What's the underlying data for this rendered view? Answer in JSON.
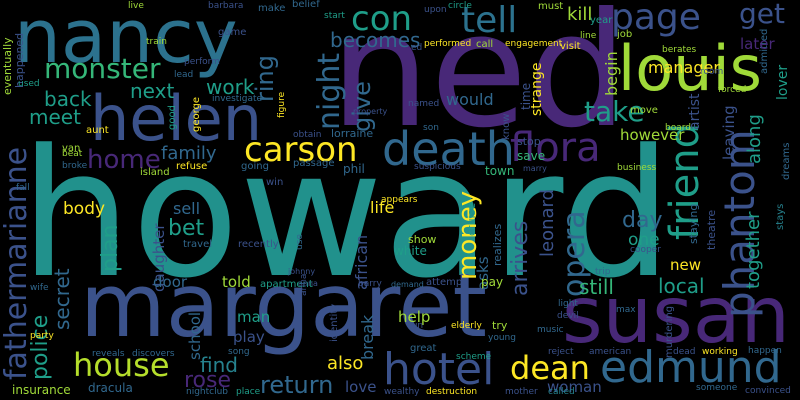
{
  "colors": {
    "background": "#000000",
    "palette": [
      "#440154",
      "#46327e",
      "#365c8d",
      "#277f8e",
      "#1fa187",
      "#4ac16d",
      "#a0da39",
      "#fde725"
    ]
  },
  "words": {
    "howard": "howard",
    "ned": "ned",
    "margaret": "margaret",
    "susan": "susan",
    "nancy": "nancy",
    "louis": "louis",
    "helen": "helen",
    "death": "death",
    "phantom": "phantom",
    "hotel": "hotel",
    "edmund": "edmund",
    "house": "house",
    "fathermarianne": "fathermarianne",
    "friend": "friend",
    "carson": "carson",
    "flora": "flora",
    "tell": "tell",
    "con": "con",
    "page": "page",
    "get": "get",
    "monster": "monster",
    "night": "night",
    "dean": "dean",
    "opera": "opera",
    "money": "money",
    "home": "home",
    "take": "take",
    "return": "return",
    "rose": "rose",
    "find": "find",
    "back": "back",
    "meet": "meet",
    "next": "next",
    "work": "work",
    "ring": "ring",
    "becomes": "becomes",
    "give": "give",
    "family": "family",
    "police": "police",
    "secret": "secret",
    "plan": "plan",
    "bet": "bet",
    "body": "body",
    "arrives": "arrives",
    "leonard": "leonard",
    "day": "day",
    "one": "one",
    "still": "still",
    "local": "local",
    "together": "together",
    "along": "along",
    "begin": "begin",
    "manager": "manager",
    "later": "later",
    "kill": "kill",
    "also": "also",
    "told": "told",
    "man": "man",
    "play": "play",
    "door": "door",
    "school": "school",
    "help": "help",
    "break": "break",
    "life": "life",
    "sell": "sell",
    "daughter": "daughter",
    "would": "would",
    "however": "however",
    "leaving": "leaving",
    "artist": "artist",
    "new": "new",
    "woman": "woman",
    "love": "love",
    "african": "african",
    "white": "white",
    "asks": "asks",
    "town": "town",
    "save": "save",
    "stop": "stop",
    "strange": "strange",
    "time": "time",
    "lorraine": "lorraine",
    "phil": "phil",
    "dracula": "dracula",
    "insurance": "insurance",
    "lover": "lover",
    "circle": "circle",
    "must": "must",
    "job": "job",
    "year": "year",
    "visit": "visit",
    "call": "call",
    "performed": "performed",
    "engagement": "engagement",
    "upon": "upon",
    "start": "start",
    "belief": "belief",
    "make": "make",
    "barbara": "barbara",
    "live": "live",
    "train": "train",
    "eventually": "eventually",
    "happened": "happened",
    "used": "used",
    "aunt": "aunt",
    "van": "van",
    "beat": "beat",
    "broke": "broke",
    "fall": "fall",
    "wife": "wife",
    "party": "party",
    "reveals": "reveals",
    "discovers": "discovers",
    "song": "song",
    "nightclub": "nightclub",
    "place": "place",
    "wealthy": "wealthy",
    "destruction": "destruction",
    "mother": "mother",
    "called": "called",
    "someone": "someone",
    "convinced": "convinced",
    "dead": "dead",
    "working": "working",
    "happen": "happen",
    "reject": "reject",
    "american": "american",
    "scheme": "scheme",
    "great": "great",
    "elderly": "elderly",
    "young": "young",
    "try": "try",
    "music": "music",
    "devil": "devil",
    "light": "light",
    "max": "max",
    "trip": "trip",
    "cooper": "cooper",
    "staying": "staying",
    "theatre": "theatre",
    "murdering": "murdering",
    "business": "business",
    "board": "board",
    "move": "move",
    "forced": "forced",
    "room": "room",
    "admitted": "admitted",
    "appears": "appears",
    "cruise": "cruise",
    "realizes": "realizes",
    "show": "show",
    "pay": "pay",
    "attempt": "attempt",
    "barry": "barry",
    "demand": "demand",
    "apartment": "apartment",
    "johnny": "johnny",
    "anna": "anna",
    "identity": "identity",
    "run": "run",
    "recently": "recently",
    "travel": "travel",
    "refuse": "refuse",
    "island": "island",
    "win": "win",
    "going": "going",
    "passage": "passage",
    "suspicious": "suspicious",
    "marry": "marry",
    "son": "son",
    "obtain": "obtain",
    "property": "property",
    "good": "good",
    "george": "george",
    "investigate": "investigate",
    "figure": "figure",
    "perform": "perform",
    "lead": "lead",
    "game": "game",
    "named": "named",
    "know": "know",
    "use": "use",
    "ed": "ed",
    "line": "line",
    "berates": "berates",
    "dreams": "dreams",
    "stays": "stays"
  }
}
